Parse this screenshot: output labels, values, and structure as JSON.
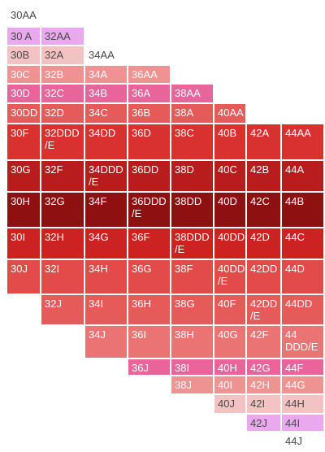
{
  "palette": {
    "A": "#eaa8ee",
    "B": "#f3c2c2",
    "C": "#ef9292",
    "D": "#e8649a",
    "E": "#ea7474",
    "F": "#e65a5a",
    "G": "#e34a4a",
    "H": "#d93030",
    "I": "#cc2222",
    "J": "#b81c1c",
    "K": "#8f1010",
    "N": "none"
  },
  "rows": [
    {
      "cells": [
        {
          "label": "30AA",
          "color": "N"
        }
      ]
    },
    {
      "cells": [
        {
          "label": "30 A",
          "color": "A"
        },
        {
          "label": "32AA",
          "color": "A"
        }
      ]
    },
    {
      "cells": [
        {
          "label": "30B",
          "color": "B"
        },
        {
          "label": "32A",
          "color": "B"
        },
        {
          "label": "34AA",
          "color": "N"
        }
      ]
    },
    {
      "cells": [
        {
          "label": "30C",
          "color": "C"
        },
        {
          "label": "32B",
          "color": "C"
        },
        {
          "label": "34A",
          "color": "C"
        },
        {
          "label": "36AA",
          "color": "C"
        }
      ]
    },
    {
      "cells": [
        {
          "label": "30D",
          "color": "D"
        },
        {
          "label": "32C",
          "color": "D"
        },
        {
          "label": "34B",
          "color": "D"
        },
        {
          "label": "36A",
          "color": "D"
        },
        {
          "label": "38AA",
          "color": "D"
        }
      ]
    },
    {
      "cells": [
        {
          "label": "30DD",
          "color": "F"
        },
        {
          "label": "32D",
          "color": "F"
        },
        {
          "label": "34C",
          "color": "F"
        },
        {
          "label": "36B",
          "color": "F"
        },
        {
          "label": "38A",
          "color": "F"
        },
        {
          "label": "40AA",
          "color": "F"
        }
      ]
    },
    {
      "cells": [
        {
          "label": "30F",
          "color": "H"
        },
        {
          "label": "32DDD\n/E",
          "color": "H"
        },
        {
          "label": "34DD",
          "color": "H"
        },
        {
          "label": "36D",
          "color": "H"
        },
        {
          "label": "38C",
          "color": "H"
        },
        {
          "label": "40B",
          "color": "H"
        },
        {
          "label": "42A",
          "color": "H"
        },
        {
          "label": "44AA",
          "color": "H"
        }
      ]
    },
    {
      "cells": [
        {
          "label": "30G",
          "color": "J"
        },
        {
          "label": "32F",
          "color": "J"
        },
        {
          "label": "34DDD\n/E",
          "color": "J"
        },
        {
          "label": "36DD",
          "color": "J"
        },
        {
          "label": "38D",
          "color": "J"
        },
        {
          "label": "40C",
          "color": "J"
        },
        {
          "label": "42B",
          "color": "J"
        },
        {
          "label": "44A",
          "color": "J"
        }
      ]
    },
    {
      "cells": [
        {
          "label": "30H",
          "color": "K"
        },
        {
          "label": "32G",
          "color": "K"
        },
        {
          "label": "34F",
          "color": "K"
        },
        {
          "label": "36DDD\n/E",
          "color": "K"
        },
        {
          "label": "38DD",
          "color": "K"
        },
        {
          "label": "40D",
          "color": "K"
        },
        {
          "label": "42C",
          "color": "K"
        },
        {
          "label": "44B",
          "color": "K"
        }
      ]
    },
    {
      "cells": [
        {
          "label": "30I",
          "color": "I"
        },
        {
          "label": "32H",
          "color": "I"
        },
        {
          "label": "34G",
          "color": "I"
        },
        {
          "label": "36F",
          "color": "I"
        },
        {
          "label": "38DDD\n/E",
          "color": "I"
        },
        {
          "label": "40DD",
          "color": "I"
        },
        {
          "label": "42D",
          "color": "I"
        },
        {
          "label": "44C",
          "color": "I"
        }
      ]
    },
    {
      "cells": [
        {
          "label": "30J",
          "color": "G"
        },
        {
          "label": "32I",
          "color": "G"
        },
        {
          "label": "34H",
          "color": "G"
        },
        {
          "label": "36G",
          "color": "G"
        },
        {
          "label": "38F",
          "color": "G"
        },
        {
          "label": "40DD\n/E",
          "color": "G"
        },
        {
          "label": "42DD",
          "color": "G"
        },
        {
          "label": "44D",
          "color": "G"
        }
      ]
    },
    {
      "cells": [
        {
          "label": "32J",
          "color": "F"
        },
        {
          "label": "34I",
          "color": "F"
        },
        {
          "label": "36H",
          "color": "F"
        },
        {
          "label": "38G",
          "color": "F"
        },
        {
          "label": "40F",
          "color": "F"
        },
        {
          "label": "42DD\n/E",
          "color": "F"
        },
        {
          "label": "44DD",
          "color": "F"
        }
      ]
    },
    {
      "cells": [
        {
          "label": "34J",
          "color": "E"
        },
        {
          "label": "36I",
          "color": "E"
        },
        {
          "label": "38H",
          "color": "E"
        },
        {
          "label": "40G",
          "color": "E"
        },
        {
          "label": "42F",
          "color": "E"
        },
        {
          "label": "44\nDDD/E",
          "color": "E"
        }
      ]
    },
    {
      "cells": [
        {
          "label": "36J",
          "color": "D"
        },
        {
          "label": "38I",
          "color": "D"
        },
        {
          "label": "40H",
          "color": "D"
        },
        {
          "label": "42G",
          "color": "D"
        },
        {
          "label": "44F",
          "color": "D"
        }
      ]
    },
    {
      "cells": [
        {
          "label": "38J",
          "color": "C"
        },
        {
          "label": "40I",
          "color": "C"
        },
        {
          "label": "42H",
          "color": "C"
        },
        {
          "label": "44G",
          "color": "C"
        }
      ]
    },
    {
      "cells": [
        {
          "label": "40J",
          "color": "B"
        },
        {
          "label": "42I",
          "color": "B"
        },
        {
          "label": "44H",
          "color": "B"
        }
      ]
    },
    {
      "cells": [
        {
          "label": "42J",
          "color": "A"
        },
        {
          "label": "44I",
          "color": "A"
        }
      ]
    },
    {
      "cells": [
        {
          "label": "44J",
          "color": "N"
        }
      ]
    }
  ]
}
